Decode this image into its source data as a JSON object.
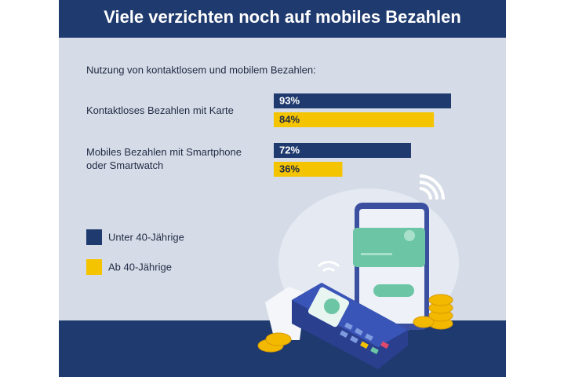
{
  "chart_data": {
    "type": "bar",
    "orientation": "horizontal",
    "title": "Viele verzichten noch auf mobiles Bezahlen",
    "subtitle": "Nutzung von kontaktlosem und mobilem Bezahlen:",
    "categories": [
      "Kontaktloses Bezahlen mit Karte",
      "Mobiles Bezahlen mit Smartphone oder Smartwatch"
    ],
    "xlim": [
      0,
      100
    ],
    "series": [
      {
        "name": "Unter 40-Jährige",
        "color": "#1f3a6e",
        "values": [
          93,
          72
        ],
        "value_labels": [
          "93%",
          "72%"
        ]
      },
      {
        "name": "Ab 40-Jährige",
        "color": "#f5c400",
        "values": [
          84,
          36
        ],
        "value_labels": [
          "84%",
          "36%"
        ]
      }
    ]
  }
}
